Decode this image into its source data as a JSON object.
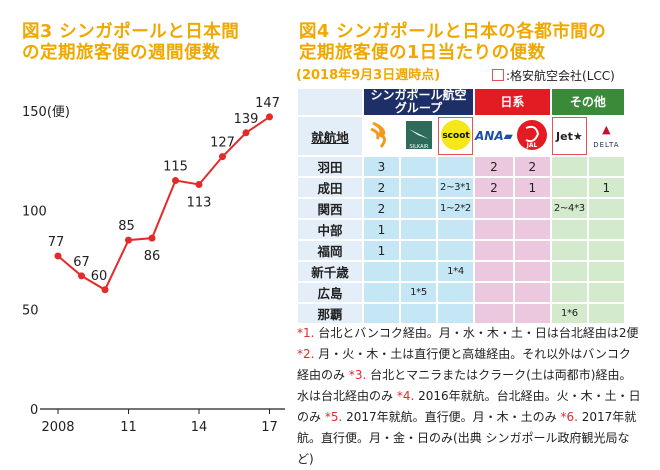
{
  "fig3": {
    "title_line1": "図3 シンガポールと日本間",
    "title_line2": "の定期旅客便の週間便数"
  },
  "chart_data": {
    "type": "line",
    "title": "図3 シンガポールと日本間の定期旅客便の週間便数",
    "ylabel": "(便)",
    "x": [
      2008,
      2009,
      2010,
      2011,
      2012,
      2013,
      2014,
      2015,
      2016,
      2017
    ],
    "values": [
      77,
      67,
      60,
      85,
      86,
      115,
      113,
      127,
      139,
      147
    ],
    "xticks": [
      "2008",
      "11",
      "14",
      "17"
    ],
    "xtick_values": [
      2008,
      2011,
      2014,
      2017
    ],
    "yticks": [
      "0",
      "50",
      "100",
      "150"
    ],
    "ylim": [
      0,
      150
    ],
    "color": "#e52a2a"
  },
  "fig4": {
    "title_line1": "図4 シンガポールと日本の各都市間の",
    "title_line2": "定期旅客便の1日当たりの便数",
    "subtitle": "(2018年9月3日週時点)",
    "lcc_legend": ":格安航空会社(LCC)",
    "groups": [
      {
        "label": "シンガポール航空グループ",
        "color": "#1d2f66"
      },
      {
        "label": "日系",
        "color": "#e31c23"
      },
      {
        "label": "その他",
        "color": "#3b8a3a"
      }
    ],
    "row_header": "就航地",
    "airlines": [
      "Singapore Airlines",
      "SilkAir",
      "scoot",
      "ANA",
      "JAL",
      "Jet★",
      "DELTA"
    ],
    "rows": [
      {
        "city": "羽田",
        "cells": [
          "3",
          "",
          "",
          "2",
          "2",
          "",
          ""
        ]
      },
      {
        "city": "成田",
        "cells": [
          "2",
          "",
          "2~3*1",
          "2",
          "1",
          "",
          "1"
        ]
      },
      {
        "city": "関西",
        "cells": [
          "2",
          "",
          "1~2*2",
          "",
          "",
          "2~4*3",
          ""
        ]
      },
      {
        "city": "中部",
        "cells": [
          "1",
          "",
          "",
          "",
          "",
          "",
          ""
        ]
      },
      {
        "city": "福岡",
        "cells": [
          "1",
          "",
          "",
          "",
          "",
          "",
          ""
        ]
      },
      {
        "city": "新千歳",
        "cells": [
          "",
          "",
          "1*4",
          "",
          "",
          "",
          ""
        ]
      },
      {
        "city": "広島",
        "cells": [
          "",
          "1*5",
          "",
          "",
          "",
          "",
          ""
        ]
      },
      {
        "city": "那覇",
        "cells": [
          "",
          "",
          "",
          "",
          "",
          "1*6",
          ""
        ]
      }
    ]
  },
  "notes": [
    {
      "mark": "*1.",
      "text": " 台北とバンコク経由。月・水・木・土・日は台北経由は2便"
    },
    {
      "mark": "*2.",
      "text": " 月・火・木・土は直行便と高雄経由。それ以外はバンコク経由のみ "
    },
    {
      "mark": "*3.",
      "text": " 台北とマニラまたはクラーク(土は両都市)経由。水は台北経由のみ "
    },
    {
      "mark": "*4.",
      "text": " 2016年就航。台北経由。火・木・土・日のみ "
    },
    {
      "mark": "*5.",
      "text": " 2017年就航。直行便。月・木・土のみ "
    },
    {
      "mark": "*6.",
      "text": " 2017年就航。直行便。月・金・日のみ"
    }
  ],
  "source": "(出典 シンガポール政府観光局など)"
}
